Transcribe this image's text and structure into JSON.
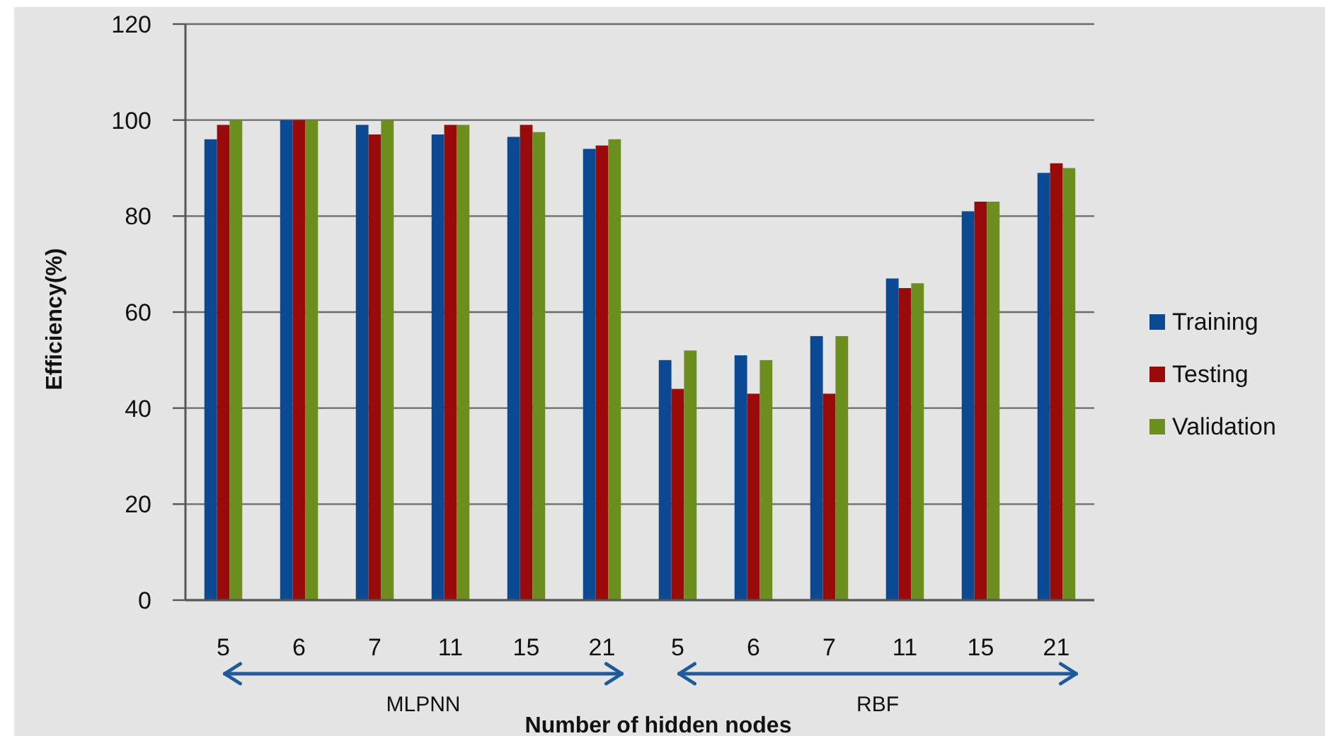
{
  "chart_data": {
    "type": "bar",
    "xlabel": "Number of hidden nodes",
    "ylabel": "Efficiency(%)",
    "categories": [
      "5",
      "6",
      "7",
      "11",
      "15",
      "21",
      "5",
      "6",
      "7",
      "11",
      "15",
      "21"
    ],
    "ylim": [
      0,
      120
    ],
    "yticks": [
      0,
      20,
      40,
      60,
      80,
      100,
      120
    ],
    "grid": "y",
    "legend": "right",
    "annotations": [
      "MLPNN",
      "RBF"
    ],
    "series": [
      {
        "name": "Training",
        "color": "#0b4a93",
        "values": [
          96,
          100,
          99,
          97,
          96.5,
          94,
          50,
          51,
          55,
          67,
          81,
          89
        ]
      },
      {
        "name": "Testing",
        "color": "#990a0a",
        "values": [
          99,
          100,
          97,
          99,
          99,
          94.7,
          44,
          43,
          43,
          65,
          83,
          91
        ]
      },
      {
        "name": "Validation",
        "color": "#6b8e1e",
        "values": [
          100,
          100,
          100,
          99,
          97.5,
          96,
          52,
          50,
          55,
          66,
          83,
          90
        ]
      }
    ]
  }
}
